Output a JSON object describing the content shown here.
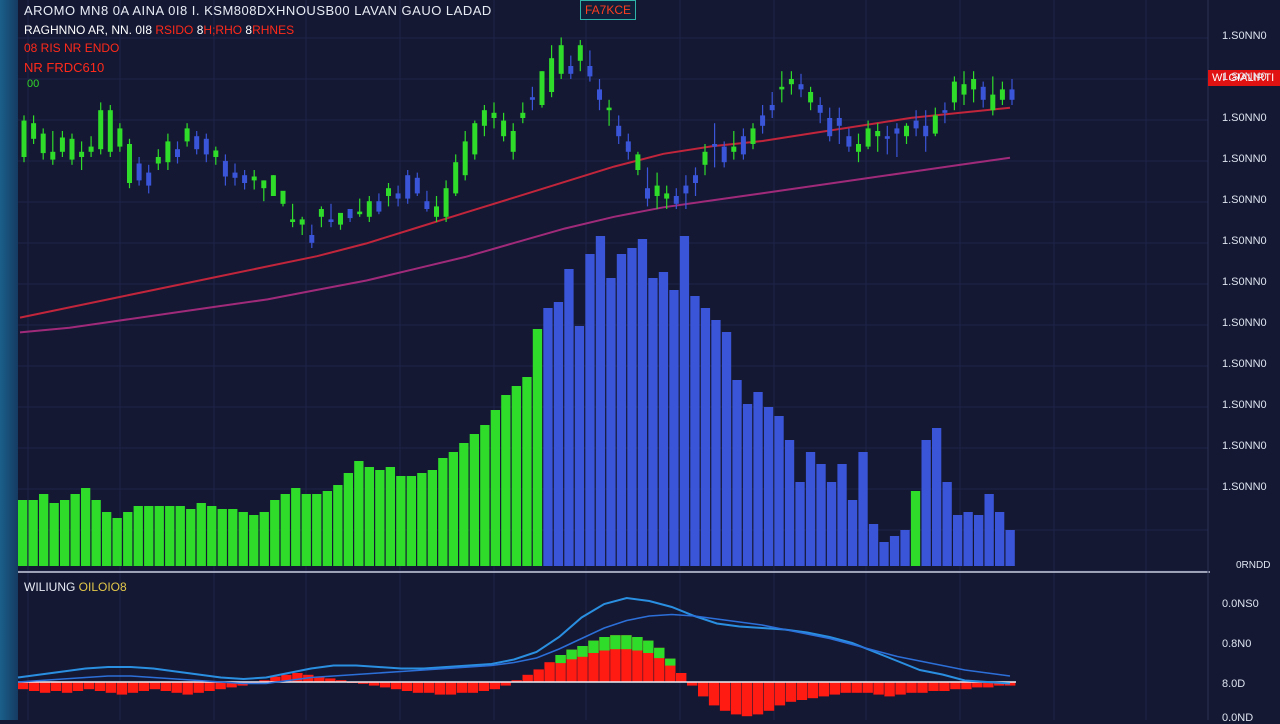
{
  "header": {
    "title": "AROMO  MN8  0A  AINA  0I8   I. KSM808DXHNOUSB00  LAVAN   GAUO   LADAD",
    "badge": "FA7KCE",
    "sub_white_1": "RAGHNNO  AR, NN.  0I8 ",
    "sub_red_1": "RSIDO",
    "sub_white_2": " 8",
    "sub_red_2": "H;RHO",
    "sub_white_3": " 8",
    "sub_red_3": "RHNES",
    "indicator_label": "08 RIS NR ",
    "indicator_value": "ENDO",
    "indicator_label_2": "NR FRDC610",
    "indicator_small": "00"
  },
  "oscillator": {
    "label": "WILIUNG ",
    "value": "OILOIO8"
  },
  "price_flag": "WI GIALIRTI",
  "y_axis_price": [
    "1.S0NN0",
    "1.S0NN0",
    "1.S0NN0",
    "1.S0NN0",
    "1.S0NN0",
    "1.S0NN0",
    "1.S0NN0",
    "1.S0NN0",
    "1.S0NN0",
    "1.S0NN0",
    "1.S0NN0",
    "1.S0NN0"
  ],
  "y_axis_osc": [
    "0.0NS0",
    "0.8N0",
    "8.0D",
    "0.0ND"
  ],
  "volume_flag": "0RNDD",
  "colors": {
    "background": "#141833",
    "bull": "#2fdc2a",
    "bear": "#3a55d8",
    "ma_fast": "#c0253b",
    "ma_slow": "#a02a7a",
    "histogram_pos": "#ff1a12",
    "histogram_cap": "#2fdc2a",
    "signal": "#2a8fe0"
  },
  "chart_data": [
    {
      "type": "candlestick",
      "series": [
        {
          "name": "price",
          "values": [
            [
              210,
              238,
              242,
              206
            ],
            [
              224,
              236,
              242,
              220
            ],
            [
              213,
              228,
              232,
              208
            ],
            [
              208,
              214,
              230,
              204
            ],
            [
              214,
              225,
              230,
              210
            ],
            [
              208,
              224,
              228,
              204
            ],
            [
              210,
              214,
              222,
              200
            ],
            [
              214,
              218,
              226,
              210
            ],
            [
              216,
              246,
              252,
              212
            ],
            [
              214,
              246,
              250,
              210
            ],
            [
              218,
              232,
              236,
              214
            ],
            [
              190,
              220,
              224,
              186
            ],
            [
              205,
              192,
              210,
              188
            ],
            [
              198,
              188,
              204,
              182
            ],
            [
              205,
              210,
              216,
              200
            ],
            [
              206,
              222,
              228,
              200
            ],
            [
              216,
              210,
              222,
              205
            ],
            [
              222,
              232,
              236,
              218
            ],
            [
              226,
              216,
              230,
              212
            ],
            [
              224,
              212,
              228,
              206
            ],
            [
              210,
              215,
              218,
              204
            ],
            [
              207,
              195,
              212,
              188
            ],
            [
              198,
              194,
              205,
              188
            ],
            [
              196,
              190,
              200,
              185
            ],
            [
              192,
              195,
              200,
              185
            ],
            [
              186,
              192,
              192,
              176
            ],
            [
              180,
              196,
              196,
              180
            ],
            [
              174,
              184,
              182,
              172
            ],
            [
              160,
              162,
              174,
              156
            ],
            [
              158,
              162,
              164,
              150
            ],
            [
              150,
              144,
              158,
              140
            ],
            [
              164,
              170,
              172,
              156
            ],
            [
              162,
              160,
              174,
              156
            ],
            [
              158,
              167,
              166,
              154
            ],
            [
              170,
              163,
              170,
              160
            ],
            [
              166,
              168,
              178,
              164
            ],
            [
              164,
              176,
              180,
              160
            ],
            [
              176,
              168,
              182,
              166
            ],
            [
              180,
              186,
              190,
              172
            ],
            [
              182,
              178,
              188,
              172
            ],
            [
              196,
              178,
              200,
              174
            ],
            [
              194,
              182,
              198,
              180
            ],
            [
              176,
              170,
              184,
              168
            ],
            [
              164,
              172,
              180,
              160
            ],
            [
              164,
              186,
              192,
              160
            ],
            [
              182,
              206,
              212,
              180
            ],
            [
              196,
              222,
              230,
              192
            ],
            [
              212,
              236,
              238,
              208
            ],
            [
              234,
              246,
              250,
              226
            ],
            [
              240,
              244,
              252,
              232
            ],
            [
              226,
              238,
              244,
              222
            ],
            [
              214,
              230,
              236,
              208
            ],
            [
              240,
              244,
              252,
              236
            ],
            [
              256,
              254,
              264,
              246
            ],
            [
              250,
              276,
              276,
              248
            ],
            [
              260,
              286,
              296,
              256
            ],
            [
              274,
              296,
              302,
              270
            ],
            [
              280,
              274,
              288,
              270
            ],
            [
              284,
              296,
              300,
              276
            ],
            [
              280,
              272,
              292,
              268
            ],
            [
              262,
              254,
              270,
              246
            ],
            [
              246,
              248,
              254,
              234
            ],
            [
              234,
              226,
              242,
              220
            ],
            [
              222,
              214,
              228,
              208
            ],
            [
              200,
              212,
              214,
              196
            ],
            [
              186,
              178,
              202,
              172
            ],
            [
              180,
              188,
              198,
              170
            ],
            [
              178,
              182,
              188,
              170
            ],
            [
              180,
              174,
              186,
              170
            ],
            [
              188,
              182,
              196,
              170
            ],
            [
              196,
              190,
              202,
              180
            ],
            [
              204,
              214,
              220,
              196
            ],
            [
              220,
              218,
              236,
              202
            ],
            [
              218,
              206,
              222,
              202
            ],
            [
              214,
              218,
              230,
              208
            ],
            [
              226,
              212,
              232,
              208
            ],
            [
              220,
              232,
              236,
              216
            ],
            [
              242,
              234,
              250,
              228
            ],
            [
              250,
              246,
              260,
              240
            ],
            [
              262,
              264,
              276,
              252
            ],
            [
              266,
              270,
              276,
              258
            ],
            [
              266,
              262,
              274,
              256
            ],
            [
              252,
              260,
              264,
              246
            ],
            [
              250,
              244,
              256,
              236
            ],
            [
              240,
              226,
              248,
              222
            ],
            [
              240,
              234,
              248,
              220
            ],
            [
              226,
              218,
              232,
              214
            ],
            [
              214,
              220,
              228,
              206
            ],
            [
              218,
              232,
              238,
              216
            ],
            [
              226,
              230,
              236,
              214
            ],
            [
              226,
              224,
              234,
              212
            ],
            [
              232,
              228,
              236,
              210
            ],
            [
              226,
              234,
              236,
              220
            ],
            [
              238,
              232,
              246,
              226
            ],
            [
              234,
              226,
              246,
              214
            ],
            [
              228,
              242,
              248,
              226
            ],
            [
              246,
              244,
              252,
              236
            ],
            [
              252,
              268,
              272,
              246
            ],
            [
              258,
              266,
              276,
              250
            ],
            [
              262,
              270,
              276,
              252
            ],
            [
              264,
              254,
              268,
              248
            ],
            [
              246,
              258,
              272,
              242
            ],
            [
              254,
              262,
              268,
              250
            ],
            [
              262,
              254,
              270,
              250
            ]
          ]
        }
      ],
      "ma_fast": [
        80,
        88,
        96,
        104,
        112,
        120,
        128,
        138,
        150,
        162,
        174,
        186,
        198,
        208,
        214,
        218,
        224,
        230,
        236,
        240,
        244
      ],
      "ma_slow": [
        70,
        74,
        80,
        86,
        92,
        98,
        106,
        114,
        124,
        134,
        146,
        158,
        168,
        176,
        182,
        188,
        194,
        200,
        206,
        212,
        218
      ]
    },
    {
      "type": "bar",
      "name": "volume",
      "values": [
        22,
        22,
        24,
        21,
        22,
        24,
        26,
        22,
        18,
        16,
        18,
        20,
        20,
        20,
        20,
        20,
        19,
        21,
        20,
        19,
        19,
        18,
        17,
        18,
        22,
        24,
        26,
        24,
        24,
        25,
        27,
        31,
        35,
        33,
        32,
        33,
        30,
        30,
        31,
        32,
        36,
        38,
        41,
        44,
        47,
        52,
        57,
        60,
        63,
        79,
        86,
        88,
        99,
        80,
        104,
        110,
        96,
        104,
        106,
        109,
        96,
        98,
        92,
        110,
        90,
        86,
        82,
        78,
        62,
        54,
        58,
        53,
        50,
        42,
        28,
        38,
        34,
        28,
        34,
        22,
        38,
        14,
        8,
        10,
        12,
        25,
        42,
        46,
        28,
        17,
        18,
        17,
        24,
        18,
        12
      ],
      "bull_until": 49
    },
    {
      "type": "line",
      "name": "oscillator",
      "series": [
        {
          "values": [
            -2,
            2,
            6,
            10,
            12,
            12,
            10,
            6,
            2,
            -2,
            -4,
            -2,
            4,
            10,
            14,
            14,
            12,
            10,
            10,
            12,
            14,
            16,
            22,
            32,
            52,
            78,
            96,
            104,
            100,
            92,
            80,
            70,
            66,
            64,
            62,
            58,
            52,
            44,
            32,
            20,
            8,
            2,
            -6,
            -8,
            -10
          ]
        },
        {
          "values": [
            -8,
            -6,
            -4,
            -2,
            0,
            0,
            -2,
            -4,
            -6,
            -8,
            -10,
            -10,
            -6,
            -2,
            0,
            2,
            4,
            6,
            8,
            10,
            12,
            14,
            18,
            24,
            36,
            50,
            64,
            74,
            80,
            82,
            80,
            76,
            72,
            68,
            62,
            56,
            50,
            42,
            34,
            26,
            20,
            14,
            8,
            4,
            0
          ]
        }
      ],
      "histogram": [
        -8,
        -10,
        -12,
        -10,
        -12,
        -10,
        -8,
        -10,
        -12,
        -14,
        -12,
        -10,
        -8,
        -10,
        -12,
        -14,
        -12,
        -10,
        -8,
        -6,
        -4,
        -2,
        2,
        6,
        8,
        10,
        8,
        6,
        4,
        2,
        0,
        -2,
        -4,
        -6,
        -8,
        -10,
        -12,
        -12,
        -14,
        -14,
        -12,
        -12,
        -10,
        -8,
        -4,
        2,
        8,
        14,
        22,
        30,
        36,
        40,
        46,
        50,
        52,
        52,
        50,
        46,
        38,
        26,
        10,
        -4,
        -16,
        -26,
        -32,
        -36,
        -38,
        -36,
        -32,
        -26,
        -22,
        -20,
        -18,
        -16,
        -14,
        -12,
        -12,
        -12,
        -14,
        -16,
        -14,
        -12,
        -12,
        -10,
        -10,
        -8,
        -8,
        -6,
        -6,
        -4,
        -4
      ]
    }
  ]
}
